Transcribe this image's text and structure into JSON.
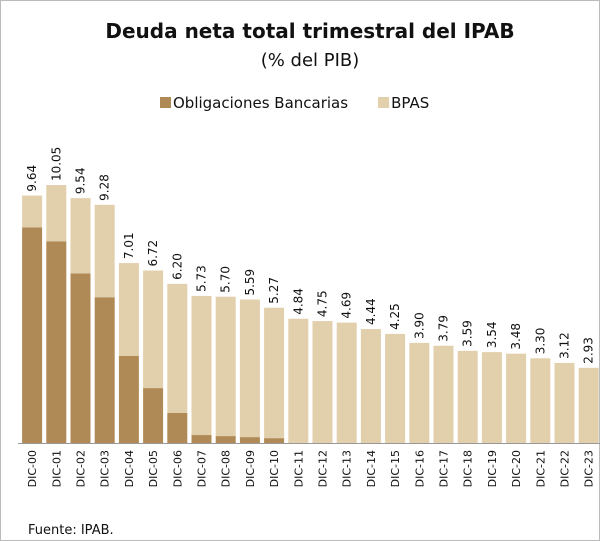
{
  "chart_data": {
    "type": "stacked_bar",
    "title": "Deuda neta total trimestral del IPAB",
    "subtitle": "(% del PIB)",
    "source": "Fuente: IPAB.",
    "categories": [
      "DIC-00",
      "DIC-01",
      "DIC-02",
      "DIC-03",
      "DIC-04",
      "DIC-05",
      "DIC-06",
      "DIC-07",
      "DIC-08",
      "DIC-09",
      "DIC-10",
      "DIC-11",
      "DIC-12",
      "DIC-13",
      "DIC-14",
      "DIC-15",
      "DIC-16",
      "DIC-17",
      "DIC-18",
      "DIC-19",
      "DIC-20",
      "DIC-21",
      "DIC-22",
      "DIC-23"
    ],
    "series": [
      {
        "name": "Obligaciones Bancarias",
        "color": "#b08a56",
        "values": [
          8.4,
          7.86,
          6.61,
          5.68,
          3.39,
          2.14,
          1.17,
          0.31,
          0.27,
          0.23,
          0.19,
          0,
          0,
          0,
          0,
          0,
          0,
          0,
          0,
          0,
          0,
          0,
          0,
          0
        ]
      },
      {
        "name": "BPAS",
        "color": "#e2cfab",
        "values": [
          1.24,
          2.19,
          2.93,
          3.6,
          3.62,
          4.58,
          5.03,
          5.42,
          5.43,
          5.36,
          5.08,
          4.84,
          4.75,
          4.69,
          4.44,
          4.25,
          3.9,
          3.79,
          3.59,
          3.54,
          3.48,
          3.3,
          3.12,
          2.93
        ]
      }
    ],
    "totals": [
      9.64,
      10.05,
      9.54,
      9.28,
      7.01,
      6.72,
      "6.20",
      5.73,
      "5.70",
      5.59,
      5.27,
      4.84,
      4.75,
      4.69,
      4.44,
      4.25,
      "3.90",
      3.79,
      3.59,
      3.54,
      3.48,
      "3.30",
      3.12,
      2.93
    ],
    "ylim": [
      0,
      12
    ]
  }
}
